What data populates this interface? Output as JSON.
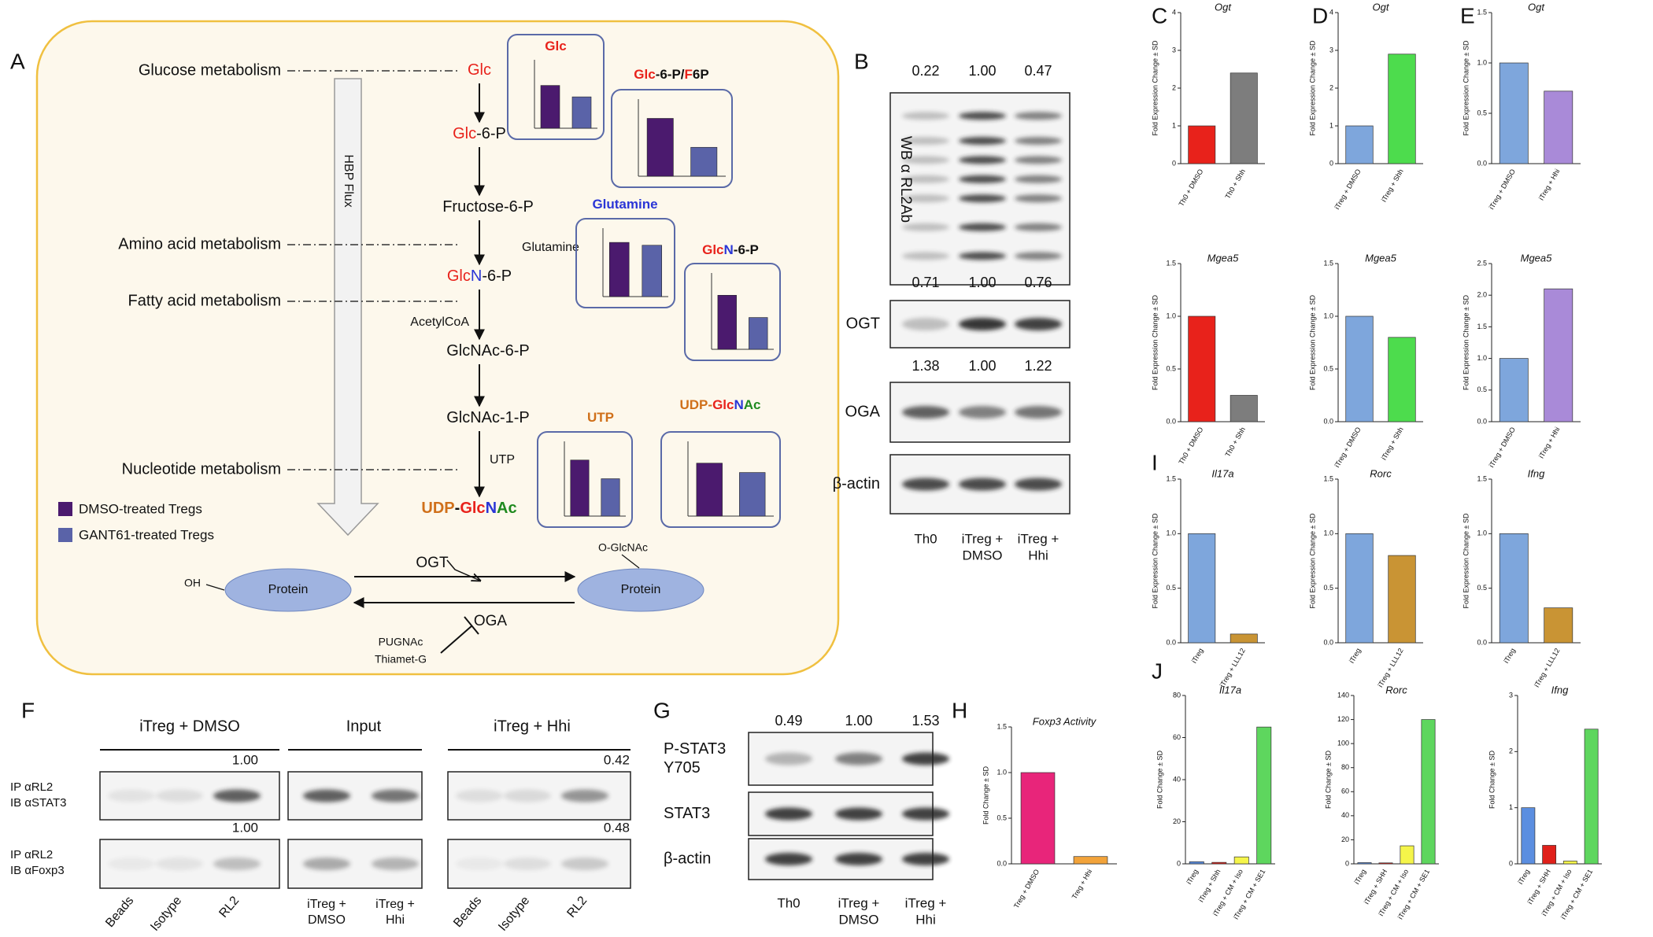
{
  "panel_a": {
    "label": "A",
    "metabolism": [
      {
        "text": "Glucose metabolism",
        "color": "#e8221b"
      },
      {
        "text": "Amino acid metabolism",
        "color": "#2a36d6"
      },
      {
        "text": "Fatty acid metabolism",
        "color": "#1f8a1f"
      },
      {
        "text": "Nucleotide metabolism",
        "color": "#d0701a"
      }
    ],
    "flux": "HBP Flux",
    "nodes": [
      [
        {
          "text": "Glc",
          "color": "#e8221b"
        }
      ],
      [
        {
          "text": "Glc",
          "color": "#e8221b"
        },
        {
          "text": "-6-P",
          "color": "#111111"
        }
      ],
      [
        {
          "text": "Fructose-6-P",
          "color": "#111111"
        }
      ],
      [
        {
          "text": "Glc",
          "color": "#e8221b"
        },
        {
          "text": "N",
          "color": "#2a36d6"
        },
        {
          "text": "-6-P",
          "color": "#111111"
        }
      ],
      [
        {
          "text": "GlcNAc-6-P",
          "color": "#111111"
        }
      ],
      [
        {
          "text": "GlcNAc-1-P",
          "color": "#111111"
        }
      ],
      [
        {
          "text": "UDP",
          "color": "#d0701a"
        },
        {
          "text": "-",
          "color": "#111111"
        },
        {
          "text": "Glc",
          "color": "#e8221b"
        },
        {
          "text": "N",
          "color": "#2a36d6"
        },
        {
          "text": "Ac",
          "color": "#1f8a1f"
        }
      ]
    ],
    "inputs": [
      {
        "text": "Glutamine",
        "color": "#2a36d6"
      },
      {
        "text": "AcetylCoA",
        "color": "#1f8a1f"
      },
      {
        "text": "UTP",
        "color": "#d0701a"
      }
    ],
    "mini_charts": [
      {
        "title": [
          {
            "text": "Glc",
            "color": "#e8221b"
          }
        ],
        "values": [
          0.75,
          0.55
        ]
      },
      {
        "title": [
          {
            "text": "Glc",
            "color": "#e8221b"
          },
          {
            "text": "-6-P/",
            "color": "#111111"
          },
          {
            "text": "F",
            "color": "#e8221b"
          },
          {
            "text": "6P",
            "color": "#111111"
          }
        ],
        "values": [
          0.9,
          0.45
        ]
      },
      {
        "title": [
          {
            "text": "Glutamine",
            "color": "#2a36d6"
          }
        ],
        "values": [
          0.95,
          0.9
        ]
      },
      {
        "title": [
          {
            "text": "Glc",
            "color": "#e8221b"
          },
          {
            "text": "N",
            "color": "#2a36d6"
          },
          {
            "text": "-6-P",
            "color": "#111111"
          }
        ],
        "values": [
          0.85,
          0.5
        ]
      },
      {
        "title": [
          {
            "text": "UTP",
            "color": "#d0701a"
          }
        ],
        "values": [
          0.9,
          0.6
        ]
      },
      {
        "title": [
          {
            "text": "UDP-",
            "color": "#d0701a"
          },
          {
            "text": "Glc",
            "color": "#e8221b"
          },
          {
            "text": "N",
            "color": "#2a36d6"
          },
          {
            "text": "Ac",
            "color": "#1f8a1f"
          }
        ],
        "values": [
          0.85,
          0.7
        ]
      }
    ],
    "mini_ylim": [
      0,
      1.2
    ],
    "legend": [
      {
        "text": "DMSO-treated Tregs",
        "color": "#4b1a6e"
      },
      {
        "text": "GANT61-treated Tregs",
        "color": "#5a63a8"
      }
    ],
    "reaction": {
      "left": "Protein",
      "right": "Protein",
      "oh": "OH",
      "oglcnac": "O-GlcNAc",
      "ogt": "OGT",
      "oga": "OGA",
      "inhibitors": [
        "PUGNAc",
        "Thiamet-G"
      ]
    }
  },
  "panel_b": {
    "label": "B",
    "blots": [
      {
        "name": "WB α RL2Ab",
        "quant": [
          "0.22",
          "1.00",
          "0.47"
        ]
      },
      {
        "name": "OGT",
        "quant": [
          "0.71",
          "1.00",
          "0.76"
        ]
      },
      {
        "name": "OGA",
        "quant": [
          "1.38",
          "1.00",
          "1.22"
        ]
      },
      {
        "name": "β-actin"
      }
    ],
    "lanes": [
      [
        "Th0"
      ],
      [
        "iTreg +",
        "DMSO"
      ],
      [
        "iTreg +",
        "Hhi"
      ]
    ]
  },
  "panel_f": {
    "label": "F",
    "groups": [
      "iTreg + DMSO",
      "Input",
      "iTreg + Hhi"
    ],
    "rows": [
      {
        "labels": [
          "IP αRL2",
          "IB αSTAT3"
        ],
        "quant": [
          "1.00",
          "0.42"
        ]
      },
      {
        "labels": [
          "IP αRL2",
          "IB αFoxp3"
        ],
        "quant": [
          "1.00",
          "0.48"
        ]
      }
    ],
    "lanes": [
      [
        "Beads"
      ],
      [
        "Isotype"
      ],
      [
        "RL2"
      ],
      [
        "iTreg +",
        "DMSO"
      ],
      [
        "iTreg +",
        "Hhi"
      ],
      [
        "Beads"
      ],
      [
        "Isotype"
      ],
      [
        "RL2"
      ]
    ]
  },
  "panel_g": {
    "label": "G",
    "quant": [
      "0.49",
      "1.00",
      "1.53"
    ],
    "rows": [
      [
        "P-STAT3",
        "Y705"
      ],
      [
        "STAT3"
      ],
      [
        "β-actin"
      ]
    ],
    "lanes": [
      [
        "Th0"
      ],
      [
        "iTreg +",
        "DMSO"
      ],
      [
        "iTreg +",
        "Hhi"
      ]
    ]
  },
  "chart_panel_labels": [
    "C",
    "D",
    "E",
    "I",
    "H",
    "J"
  ],
  "chart_data": [
    {
      "type": "bar",
      "title": "Ogt",
      "ylabel": "Fold Expression Change ± SD",
      "categories": [
        "Th0 + DMSO",
        "Th0 + Shh"
      ],
      "values": [
        1,
        2.4
      ],
      "colors": [
        "#e8221b",
        "#7d7d7d"
      ],
      "ylim": [
        0,
        4
      ],
      "yticks": [
        0,
        1,
        2,
        3,
        4
      ]
    },
    {
      "type": "bar",
      "title": "Mgea5",
      "ylabel": "Fold Expression Change ± SD",
      "categories": [
        "Th0 + DMSO",
        "Th0 + Shh"
      ],
      "values": [
        1,
        0.25
      ],
      "colors": [
        "#e8221b",
        "#7d7d7d"
      ],
      "ylim": [
        0,
        1.5
      ],
      "yticks": [
        {
          "value": 0,
          "label": "0.0"
        },
        {
          "value": 0.5,
          "label": "0.5"
        },
        {
          "value": 1,
          "label": "1.0"
        },
        {
          "value": 1.5,
          "label": "1.5"
        }
      ]
    },
    {
      "type": "bar",
      "title": "Ogt",
      "ylabel": "Fold Expression Change ± SD",
      "categories": [
        "iTreg + DMSO",
        "iTreg + Shh"
      ],
      "values": [
        1,
        2.9
      ],
      "colors": [
        "#7ea6dc",
        "#4ddc4d"
      ],
      "ylim": [
        0,
        4
      ],
      "yticks": [
        0,
        1,
        2,
        3,
        4
      ]
    },
    {
      "type": "bar",
      "title": "Mgea5",
      "ylabel": "Fold Expression Change ± SD",
      "categories": [
        "iTreg + DMSO",
        "iTreg + Shh"
      ],
      "values": [
        1,
        0.8
      ],
      "colors": [
        "#7ea6dc",
        "#4ddc4d"
      ],
      "ylim": [
        0,
        1.5
      ],
      "yticks": [
        {
          "value": 0,
          "label": "0.0"
        },
        {
          "value": 0.5,
          "label": "0.5"
        },
        {
          "value": 1,
          "label": "1.0"
        },
        {
          "value": 1.5,
          "label": "1.5"
        }
      ]
    },
    {
      "type": "bar",
      "title": "Ogt",
      "ylabel": "Fold Expression Change ± SD",
      "categories": [
        "iTreg + DMSO",
        "iTreg + Hhi"
      ],
      "values": [
        1,
        0.72
      ],
      "colors": [
        "#7ea6dc",
        "#a98ad8"
      ],
      "ylim": [
        0,
        1.5
      ],
      "yticks": [
        {
          "value": 0,
          "label": "0.0"
        },
        {
          "value": 0.5,
          "label": "0.5"
        },
        {
          "value": 1,
          "label": "1.0"
        },
        {
          "value": 1.5,
          "label": "1.5"
        }
      ]
    },
    {
      "type": "bar",
      "title": "Mgea5",
      "ylabel": "Fold Expression Change ± SD",
      "categories": [
        "iTreg + DMSO",
        "iTreg + Hhi"
      ],
      "values": [
        1,
        2.1
      ],
      "colors": [
        "#7ea6dc",
        "#a98ad8"
      ],
      "ylim": [
        0,
        2.5
      ],
      "yticks": [
        {
          "value": 0,
          "label": "0.0"
        },
        {
          "value": 0.5,
          "label": "0.5"
        },
        {
          "value": 1,
          "label": "1.0"
        },
        {
          "value": 1.5,
          "label": "1.5"
        },
        {
          "value": 2,
          "label": "2.0"
        },
        {
          "value": 2.5,
          "label": "2.5"
        }
      ]
    },
    {
      "type": "bar",
      "title": "Il17a",
      "ylabel": "Fold Expression Change ± SD",
      "categories": [
        "iTreg",
        "iTreg + LLL12"
      ],
      "values": [
        1,
        0.08
      ],
      "colors": [
        "#7ea6dc",
        "#c99434"
      ],
      "ylim": [
        0,
        1.5
      ],
      "yticks": [
        {
          "value": 0,
          "label": "0.0"
        },
        {
          "value": 0.5,
          "label": "0.5"
        },
        {
          "value": 1,
          "label": "1.0"
        },
        {
          "value": 1.5,
          "label": "1.5"
        }
      ]
    },
    {
      "type": "bar",
      "title": "Rorc",
      "ylabel": "Fold Expression Change ± SD",
      "categories": [
        "iTreg",
        "iTreg + LLL12"
      ],
      "values": [
        1,
        0.8
      ],
      "colors": [
        "#7ea6dc",
        "#c99434"
      ],
      "ylim": [
        0,
        1.5
      ],
      "yticks": [
        {
          "value": 0,
          "label": "0.0"
        },
        {
          "value": 0.5,
          "label": "0.5"
        },
        {
          "value": 1,
          "label": "1.0"
        },
        {
          "value": 1.5,
          "label": "1.5"
        }
      ]
    },
    {
      "type": "bar",
      "title": "Ifng",
      "ylabel": "Fold Expression Change ± SD",
      "categories": [
        "iTreg",
        "iTreg + LLL12"
      ],
      "values": [
        1,
        0.32
      ],
      "colors": [
        "#7ea6dc",
        "#c99434"
      ],
      "ylim": [
        0,
        1.5
      ],
      "yticks": [
        {
          "value": 0,
          "label": "0.0"
        },
        {
          "value": 0.5,
          "label": "0.5"
        },
        {
          "value": 1,
          "label": "1.0"
        },
        {
          "value": 1.5,
          "label": "1.5"
        }
      ]
    },
    {
      "type": "bar",
      "title": "Foxp3 Activity",
      "ylabel": "Fold Change ± SD",
      "categories": [
        "Treg + DMSO",
        "Treg + Hhi"
      ],
      "values": [
        1,
        0.08
      ],
      "colors": [
        "#e8257a",
        "#f2a33a"
      ],
      "ylim": [
        0,
        1.5
      ],
      "yticks": [
        {
          "value": 0,
          "label": "0.0"
        },
        {
          "value": 0.5,
          "label": "0.5"
        },
        {
          "value": 1,
          "label": "1.0"
        },
        {
          "value": 1.5,
          "label": "1.5"
        }
      ]
    },
    {
      "type": "bar",
      "title": "Il17a",
      "ylabel": "Fold Change ± SD",
      "categories": [
        "iTreg",
        "iTreg + Shh",
        "iTreg + CM + Iso",
        "iTreg + CM + SE1"
      ],
      "values": [
        1,
        0.7,
        3.3,
        65
      ],
      "colors": [
        "#5b8ee0",
        "#e0201a",
        "#f5f54a",
        "#5ed65e"
      ],
      "ylim": [
        0,
        80
      ],
      "yticks": [
        0,
        20,
        40,
        60,
        80
      ]
    },
    {
      "type": "bar",
      "title": "Rorc",
      "ylabel": "Fold Change ± SD",
      "categories": [
        "iTreg",
        "iTreg + SHH",
        "iTreg + CM + Iso",
        "iTreg + CM + SE1"
      ],
      "values": [
        1,
        0.8,
        15,
        120
      ],
      "colors": [
        "#5b8ee0",
        "#e0201a",
        "#f5f54a",
        "#5ed65e"
      ],
      "ylim": [
        0,
        140
      ],
      "yticks": [
        0,
        20,
        40,
        60,
        80,
        100,
        120,
        140
      ]
    },
    {
      "type": "bar",
      "title": "Ifng",
      "ylabel": "Fold Change ± SD",
      "categories": [
        "iTreg",
        "iTreg + SHH",
        "iTreg + CM + Iso",
        "iTreg + CM + SE1"
      ],
      "values": [
        1,
        0.33,
        0.05,
        2.4
      ],
      "colors": [
        "#5b8ee0",
        "#e0201a",
        "#f5f54a",
        "#5ed65e"
      ],
      "ylim": [
        0,
        3
      ],
      "yticks": [
        0,
        1,
        2,
        3
      ]
    }
  ]
}
